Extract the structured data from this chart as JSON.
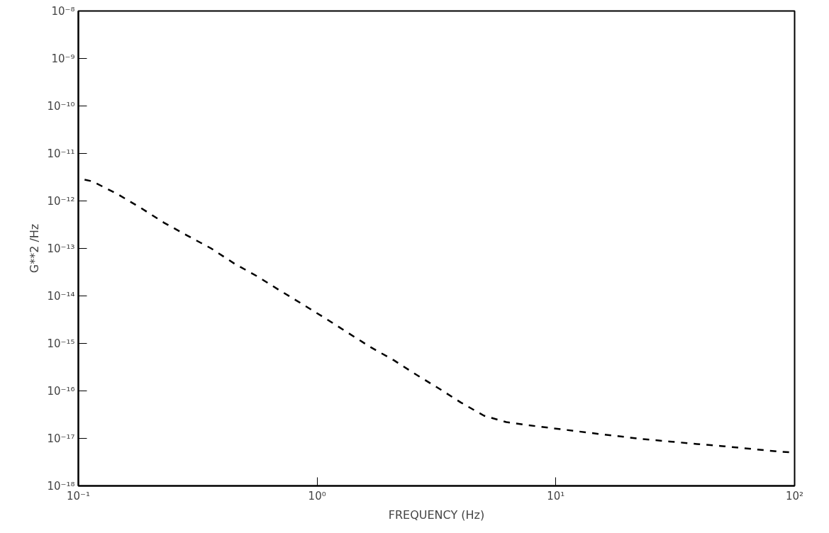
{
  "chart_data": {
    "type": "line",
    "xlabel": "FREQUENCY (Hz)",
    "ylabel": "G**2 /Hz",
    "log": "xy",
    "grid": false,
    "marker": "none",
    "line_style": "dashed",
    "xlim": [
      0.1,
      100
    ],
    "ylim": [
      1e-18,
      1e-08
    ],
    "xticks": [
      {
        "value": 0.1,
        "label": "10⁻¹"
      },
      {
        "value": 1,
        "label": "10⁰"
      },
      {
        "value": 10,
        "label": "10¹"
      },
      {
        "value": 100,
        "label": "10²"
      }
    ],
    "yticks": [
      {
        "value": 1e-18,
        "label": "10⁻¹⁸"
      },
      {
        "value": 1e-17,
        "label": "10⁻¹⁷"
      },
      {
        "value": 1e-16,
        "label": "10⁻¹⁶"
      },
      {
        "value": 1e-15,
        "label": "10⁻¹⁵"
      },
      {
        "value": 1e-14,
        "label": "10⁻¹⁴"
      },
      {
        "value": 1e-13,
        "label": "10⁻¹³"
      },
      {
        "value": 1e-12,
        "label": "10⁻¹²"
      },
      {
        "value": 1e-11,
        "label": "10⁻¹¹"
      },
      {
        "value": 1e-10,
        "label": "10⁻¹⁰"
      },
      {
        "value": 1e-09,
        "label": "10⁻⁹"
      },
      {
        "value": 1e-08,
        "label": "10⁻⁸"
      }
    ],
    "series": [
      {
        "color": "#000000",
        "x": [
          0.1,
          0.114,
          0.144,
          0.182,
          0.228,
          0.284,
          0.36,
          0.45,
          0.56,
          0.69,
          0.86,
          1.08,
          1.34,
          1.67,
          2.1,
          2.6,
          3.26,
          4.0,
          5.0,
          6.2,
          8.3,
          10.6,
          14,
          18,
          23,
          30,
          39,
          51,
          66,
          85,
          95
        ],
        "values": [
          3e-12,
          2.6e-12,
          1.45e-12,
          7.2e-13,
          3.5e-13,
          1.9e-13,
          1e-13,
          4.8e-14,
          2.6e-14,
          1.35e-14,
          6.9e-15,
          3.4e-15,
          1.7e-15,
          8.4e-16,
          4.4e-16,
          2.2e-16,
          1.1e-16,
          5.7e-17,
          3e-17,
          2.2e-17,
          1.8e-17,
          1.55e-17,
          1.3e-17,
          1.12e-17,
          9.7e-18,
          8.6e-18,
          7.6e-18,
          6.8e-18,
          6e-18,
          5.3e-18,
          5.1e-18
        ]
      }
    ]
  }
}
